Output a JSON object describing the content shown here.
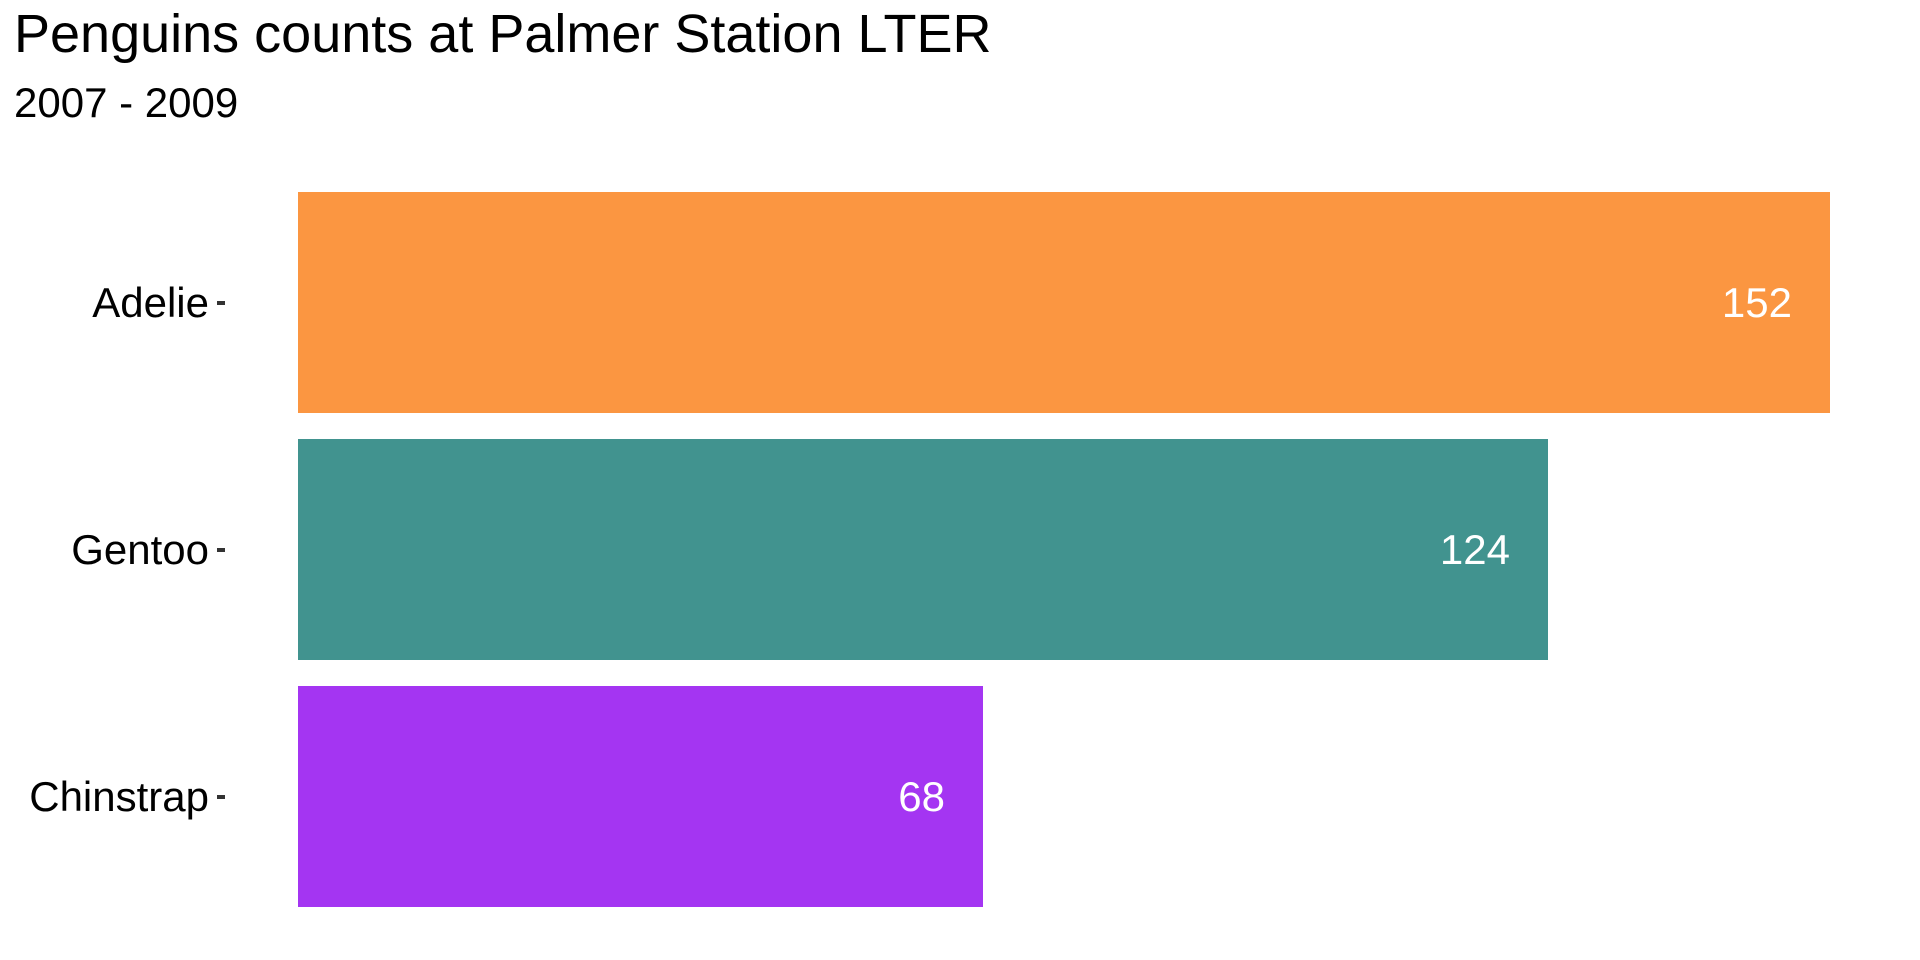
{
  "header": {
    "title": "Penguins counts at Palmer Station LTER",
    "subtitle": "2007 - 2009"
  },
  "chart_data": {
    "type": "bar",
    "orientation": "horizontal",
    "title": "Penguins counts at Palmer Station LTER",
    "subtitle": "2007 - 2009",
    "categories": [
      "Adelie",
      "Gentoo",
      "Chinstrap"
    ],
    "values": [
      152,
      124,
      68
    ],
    "bar_colors": [
      "#fb9641",
      "#41938f",
      "#a435f2"
    ],
    "value_labels": [
      "152",
      "124",
      "68"
    ],
    "value_label_position": "inside-end",
    "value_label_color": "#ffffff",
    "axis_tick_color": "#333333",
    "text_color": "#000000",
    "background_color": "#ffffff",
    "xlabel": "",
    "ylabel": "",
    "xlim": [
      0,
      152
    ],
    "grid": false,
    "legend": false
  }
}
